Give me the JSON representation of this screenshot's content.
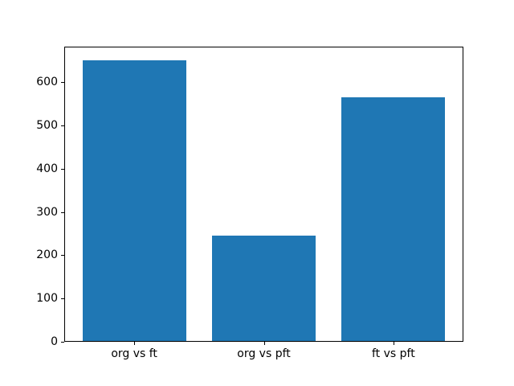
{
  "chart_data": {
    "type": "bar",
    "title": "",
    "xlabel": "",
    "ylabel": "",
    "categories": [
      "org vs ft",
      "org vs pft",
      "ft vs pft"
    ],
    "values": [
      650,
      245,
      565
    ],
    "yticks": [
      0,
      100,
      200,
      300,
      400,
      500,
      600
    ],
    "ylim": [
      0,
      682.5
    ],
    "grid": false,
    "legend_position": "none",
    "bar_color": "#1f77b4"
  },
  "colors": {
    "background": "#ffffff",
    "bar": "#1f77b4",
    "spine": "#000000",
    "tick_label": "#000000"
  }
}
